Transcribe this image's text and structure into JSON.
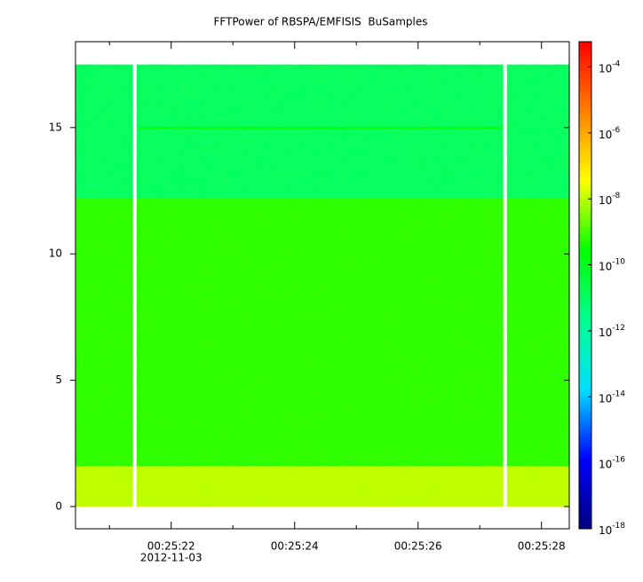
{
  "chart_data": {
    "type": "spectrogram",
    "title": "FFTPower of RBSPA/EMFISIS  BuSamples",
    "date_label": "2012-11-03",
    "xlim": [
      20.45,
      28.45
    ],
    "xticks": [
      {
        "value": 22,
        "label": "00:25:22"
      },
      {
        "value": 24,
        "label": "00:25:24"
      },
      {
        "value": 26,
        "label": "00:25:26"
      },
      {
        "value": 28,
        "label": "00:25:28"
      }
    ],
    "xminor": [
      21,
      23,
      25,
      27
    ],
    "ylim": [
      -0.88,
      18.4
    ],
    "yticks": [
      0,
      5,
      10,
      15
    ],
    "zlim": [
      1e-18,
      0.00058
    ],
    "zlog": true,
    "zticks": [
      {
        "value": 0.0001,
        "label": "10",
        "exponent": "-4"
      },
      {
        "value": 1e-06,
        "label": "10",
        "exponent": "-6"
      },
      {
        "value": 1e-08,
        "label": "10",
        "exponent": "-8"
      },
      {
        "value": 1e-10,
        "label": "10",
        "exponent": "-10"
      },
      {
        "value": 1e-12,
        "label": "10",
        "exponent": "-12"
      },
      {
        "value": 1e-14,
        "label": "10",
        "exponent": "-14"
      },
      {
        "value": 1e-16,
        "label": "10",
        "exponent": "-16"
      },
      {
        "value": 1e-18,
        "label": "10",
        "exponent": "-18"
      }
    ],
    "colormap": [
      "#00007f",
      "#0000ff",
      "#00e0ff",
      "#00ff90",
      "#00ff00",
      "#ffff00",
      "#ff8000",
      "#ff0000"
    ],
    "time_segments": [
      [
        20.45,
        21.38
      ],
      [
        21.44,
        27.38
      ],
      [
        27.44,
        28.45
      ]
    ],
    "frequency_bands": [
      {
        "from": 0,
        "to": 1.6,
        "power": 1e-08
      },
      {
        "from": 1.6,
        "to": 12.2,
        "power": 6e-10
      },
      {
        "from": 12.2,
        "to": 17.5,
        "power": 1e-11
      }
    ],
    "lines": [
      {
        "frequency": 15,
        "power": 3e-10,
        "segment": 1
      }
    ]
  }
}
